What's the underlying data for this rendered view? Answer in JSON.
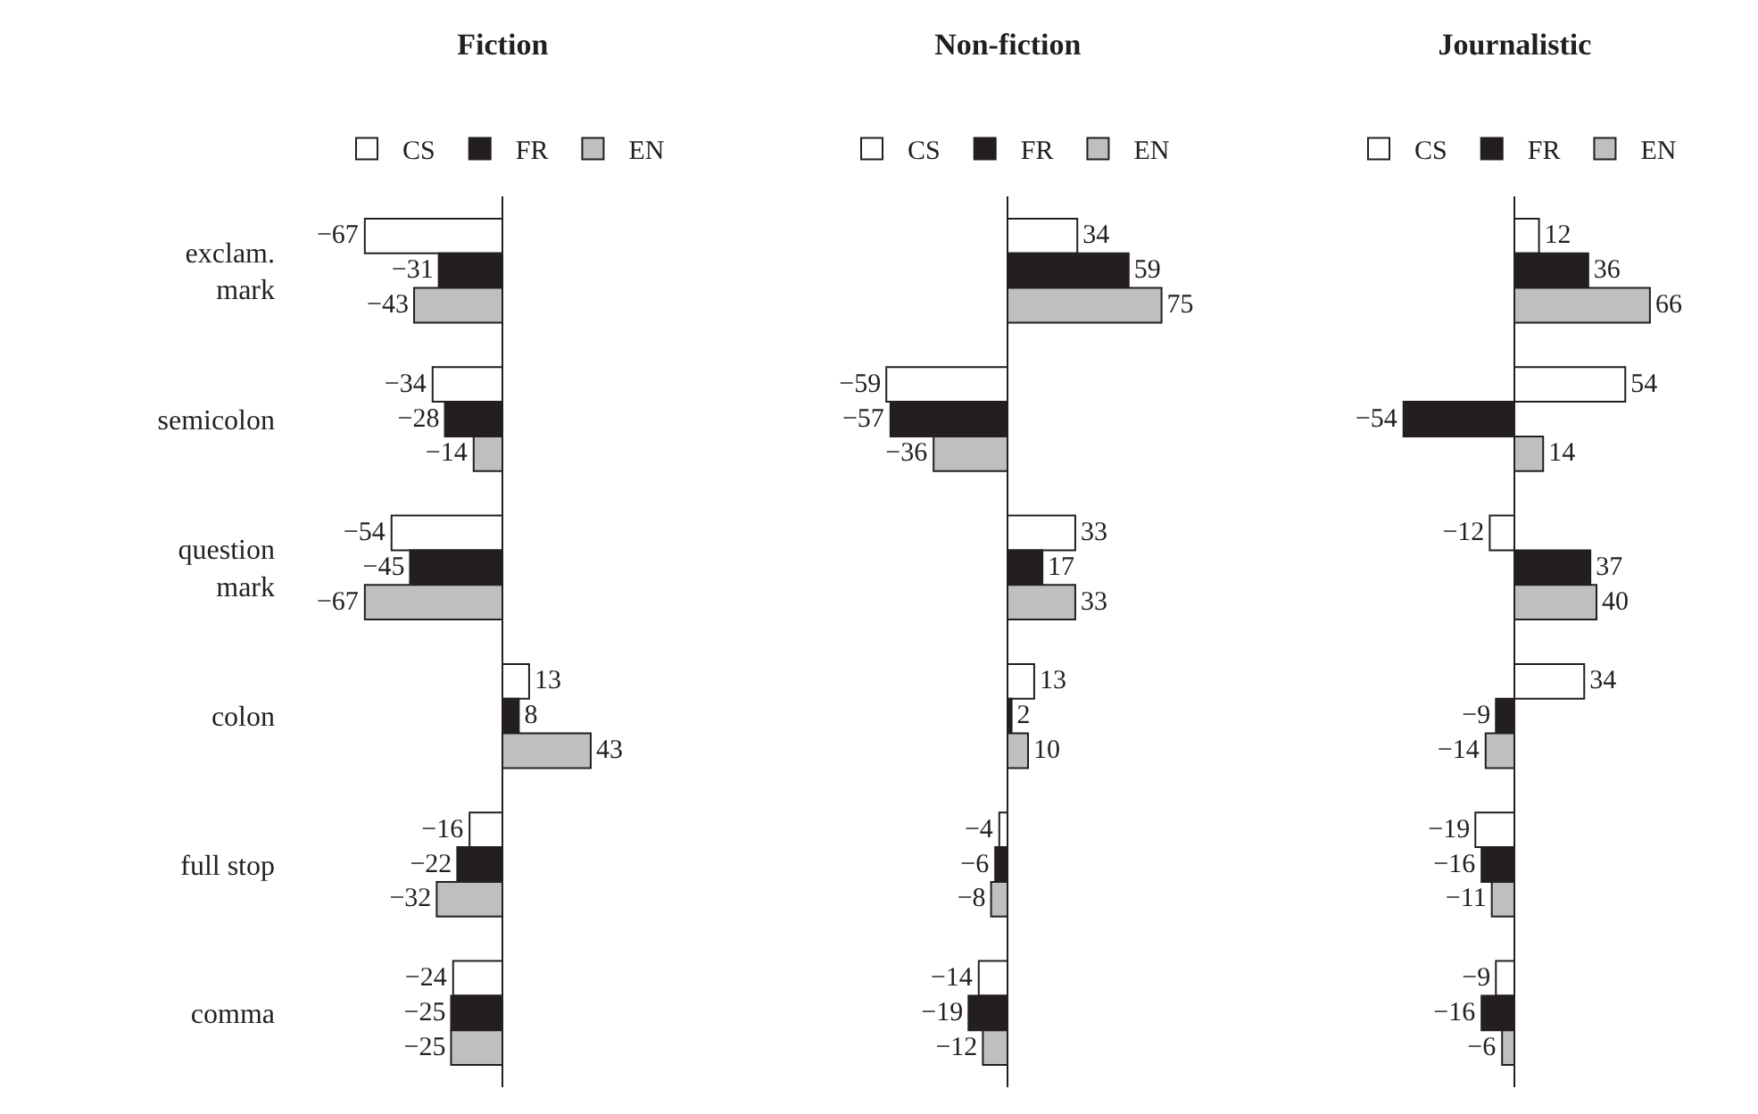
{
  "chart_data": [
    {
      "type": "bar",
      "orientation": "horizontal",
      "title": "Fiction",
      "categories": [
        "exclam. mark",
        "semicolon",
        "question mark",
        "colon",
        "full stop",
        "comma"
      ],
      "series": [
        {
          "name": "CS",
          "color": "#ffffff",
          "values": [
            -67,
            -34,
            -54,
            13,
            -16,
            -24
          ]
        },
        {
          "name": "FR",
          "color": "#231f20",
          "values": [
            -31,
            -28,
            -45,
            8,
            -22,
            -25
          ]
        },
        {
          "name": "EN",
          "color": "#bfbfbf",
          "values": [
            -43,
            -14,
            -67,
            43,
            -32,
            -25
          ]
        }
      ],
      "data_labels": true,
      "legend": "top",
      "tick_labels": "y",
      "grid": false
    },
    {
      "type": "bar",
      "orientation": "horizontal",
      "title": "Non-fiction",
      "categories": [
        null,
        null,
        null,
        null,
        null,
        null
      ],
      "series": [
        {
          "name": "CS",
          "color": "#ffffff",
          "values": [
            34,
            -59,
            33,
            13,
            -4,
            -14
          ]
        },
        {
          "name": "FR",
          "color": "#231f20",
          "values": [
            59,
            -57,
            17,
            2,
            -6,
            -19
          ]
        },
        {
          "name": "EN",
          "color": "#bfbfbf",
          "values": [
            75,
            -36,
            33,
            10,
            -8,
            -12
          ]
        }
      ],
      "data_labels": true,
      "legend": "top",
      "tick_labels": false,
      "grid": false
    },
    {
      "type": "bar",
      "orientation": "horizontal",
      "title": "Journalistic",
      "categories": [
        null,
        null,
        null,
        null,
        null,
        null
      ],
      "series": [
        {
          "name": "CS",
          "color": "#ffffff",
          "values": [
            12,
            54,
            -12,
            34,
            -19,
            -9
          ]
        },
        {
          "name": "FR",
          "color": "#231f20",
          "values": [
            36,
            -54,
            37,
            -9,
            -16,
            -16
          ]
        },
        {
          "name": "EN",
          "color": "#bfbfbf",
          "values": [
            66,
            14,
            40,
            -14,
            -11,
            -6
          ]
        }
      ],
      "data_labels": true,
      "legend": "top",
      "tick_labels": false,
      "grid": false
    }
  ]
}
